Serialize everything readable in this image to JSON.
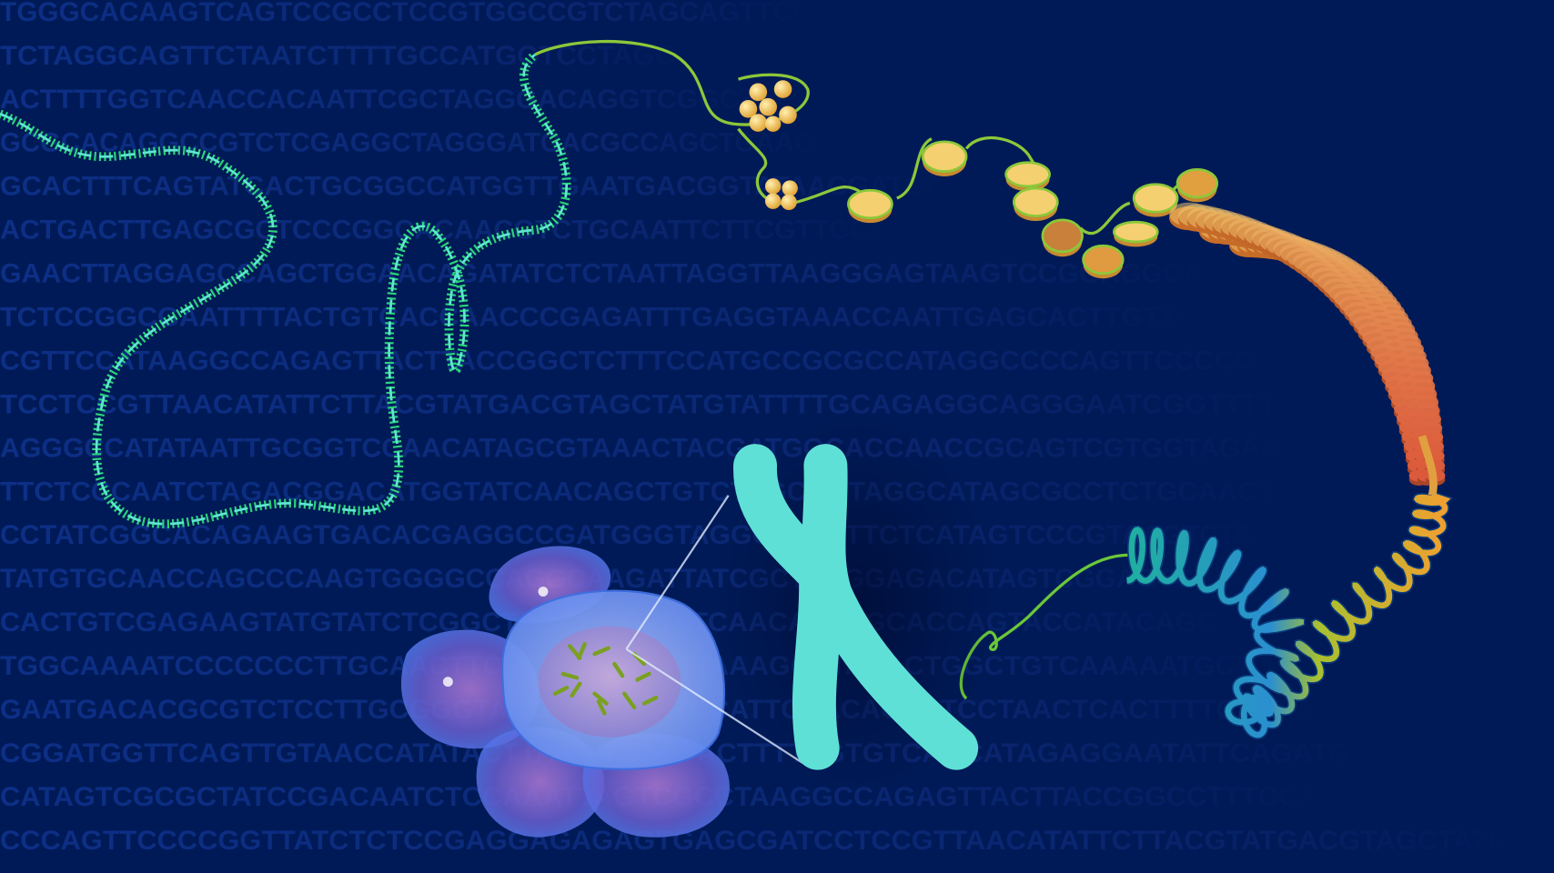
{
  "background_sequence": [
    "TGGGCACAAGTCAGTCCGCCTCCGTGGCCGTCTAGCAGTTCC",
    "TCTAGGCAGTTCTAATCTTTTGCCATGGTCCTAGCC",
    "ACTTTTGGTCAACCACAATTCGCTAGGGACAGGTCGGCTT",
    "GCGCACAGGCCGTCTCGAGGCTAGGGATGACGCCAGCTGAAGT",
    "GCACTTTCAGTATCACTGCGGCCATGGTTGAATGACGGTATAACGATGG",
    "ACTGACTTGAGCGCTCCCGGCACAACGTCTGCAATTCTTCGTTCCA",
    "GAACTTAGGAGCCAGCTGGAACAGATATCTCTAATTAGGTTAAGGGAGTAAGTCCGGAGGCAT",
    "TCTCCGGCGAATTTTACTGTCACCAACCCGAGATTTGAGGTAAACCAATTGAGCACTTGTTG",
    "CGTTCCATAAGGCCAGAGTTACTTACCGGCTCTTTCCATGCCGCGCCATAGGCCCCAGTTCCCCCG",
    "TCCTCCGTTAACATATTCTTACGTATGACGTAGCTATGTATTTTGCAGAGGCAGGGAATCGGTTTTA",
    "AGGGCCATATAATTGCGGTCCAACATAGCGTAAACTACGATGGCACCAACCGCAGTCGTGGTAGAAT",
    "TTCTCCCAATCTAGACGGACATGGTATCAACAGCTGTCTAGCAGTAGGCATAGCGCCTCTGCAACTC",
    "CCTATCGGCACAGAAGTGACACGAGGCCGATGGGTAGGCACTTTTCTCATAGTCCCGTAAGTCTCC",
    "TATGTGCAACCAGCCCAAGTGGGGCCAGGCAAGATTATCGCTGTGGAGACATAGTCGGAGTGAGG",
    "CACTGTCGAGAAGTATGTATCTCGGCTCCCCGCATATCAACAGTAGCACCAGTACCATACAGCA",
    "TGGCAAAATCCCCCCCTTGCAACTTCTCAACCGTCTTAAAGGATACACTGGCTGTCAAAAATGCTGG",
    "GAATGACACGCGTCTCCTTGCGGGTAAGCGAACGTCCATTCAACAGTGTCCTAACTCACTTTTCAATGG",
    "CGGATGGTTCAGTTGTAACCATATACTTAGCTTGAGACTTTTTGTGTCACCATAGAGGAATATTCAGATGG",
    "CATAGTCGCGCTATCCGACAATCTCCAAATTAGTCGCCTAAGGCCAGAGTTACTTACCGGCCTTTCCAT",
    "CCCAGTTCCCCGGTTATCTCTCCGAGGAGAGAGTGAGCGATCCTCCGTTAACATATTCTTACGTATGACGTAGCTATGT"
  ]
}
